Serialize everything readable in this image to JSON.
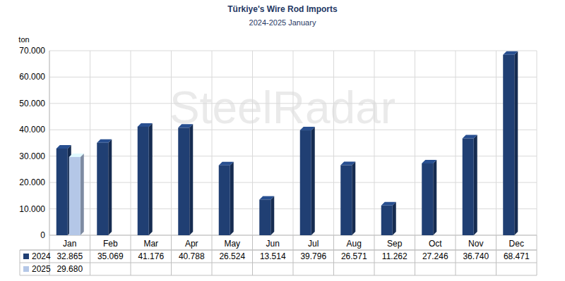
{
  "chart_data": {
    "type": "bar",
    "title": "Türkiye's Wire Rod Imports",
    "subtitle": "2024-2025 January",
    "y_label": "ton",
    "annotations": [
      "SteelRadar"
    ],
    "categories": [
      "Jan",
      "Feb",
      "Mar",
      "Apr",
      "May",
      "Jun",
      "Jul",
      "Aug",
      "Sep",
      "Oct",
      "Nov",
      "Dec"
    ],
    "series": [
      {
        "name": "2024",
        "color": "#203f73",
        "values": [
          32865,
          35069,
          41176,
          40788,
          26524,
          13514,
          39796,
          26571,
          11262,
          27246,
          36740,
          68471
        ],
        "value_labels": [
          "32.865",
          "35.069",
          "41.176",
          "40.788",
          "26.524",
          "13.514",
          "39.796",
          "26.571",
          "11.262",
          "27.246",
          "36.740",
          "68.471"
        ]
      },
      {
        "name": "2025",
        "color": "#b4c7e7",
        "values": [
          29680,
          null,
          null,
          null,
          null,
          null,
          null,
          null,
          null,
          null,
          null,
          null
        ],
        "value_labels": [
          "29.680",
          null,
          null,
          null,
          null,
          null,
          null,
          null,
          null,
          null,
          null,
          null
        ]
      }
    ],
    "ylim": [
      0,
      70000
    ],
    "yticks": [
      0,
      {
        "value": 10000,
        "label": "10.000"
      },
      {
        "value": 20000,
        "label": "20.000"
      },
      {
        "value": 30000,
        "label": "30.000"
      },
      {
        "value": 40000,
        "label": "40.000"
      },
      {
        "value": 50000,
        "label": "50.000"
      },
      {
        "value": 60000,
        "label": "60.000"
      },
      {
        "value": 70000,
        "label": "70.000"
      }
    ],
    "grid": true,
    "data_labels": true
  }
}
